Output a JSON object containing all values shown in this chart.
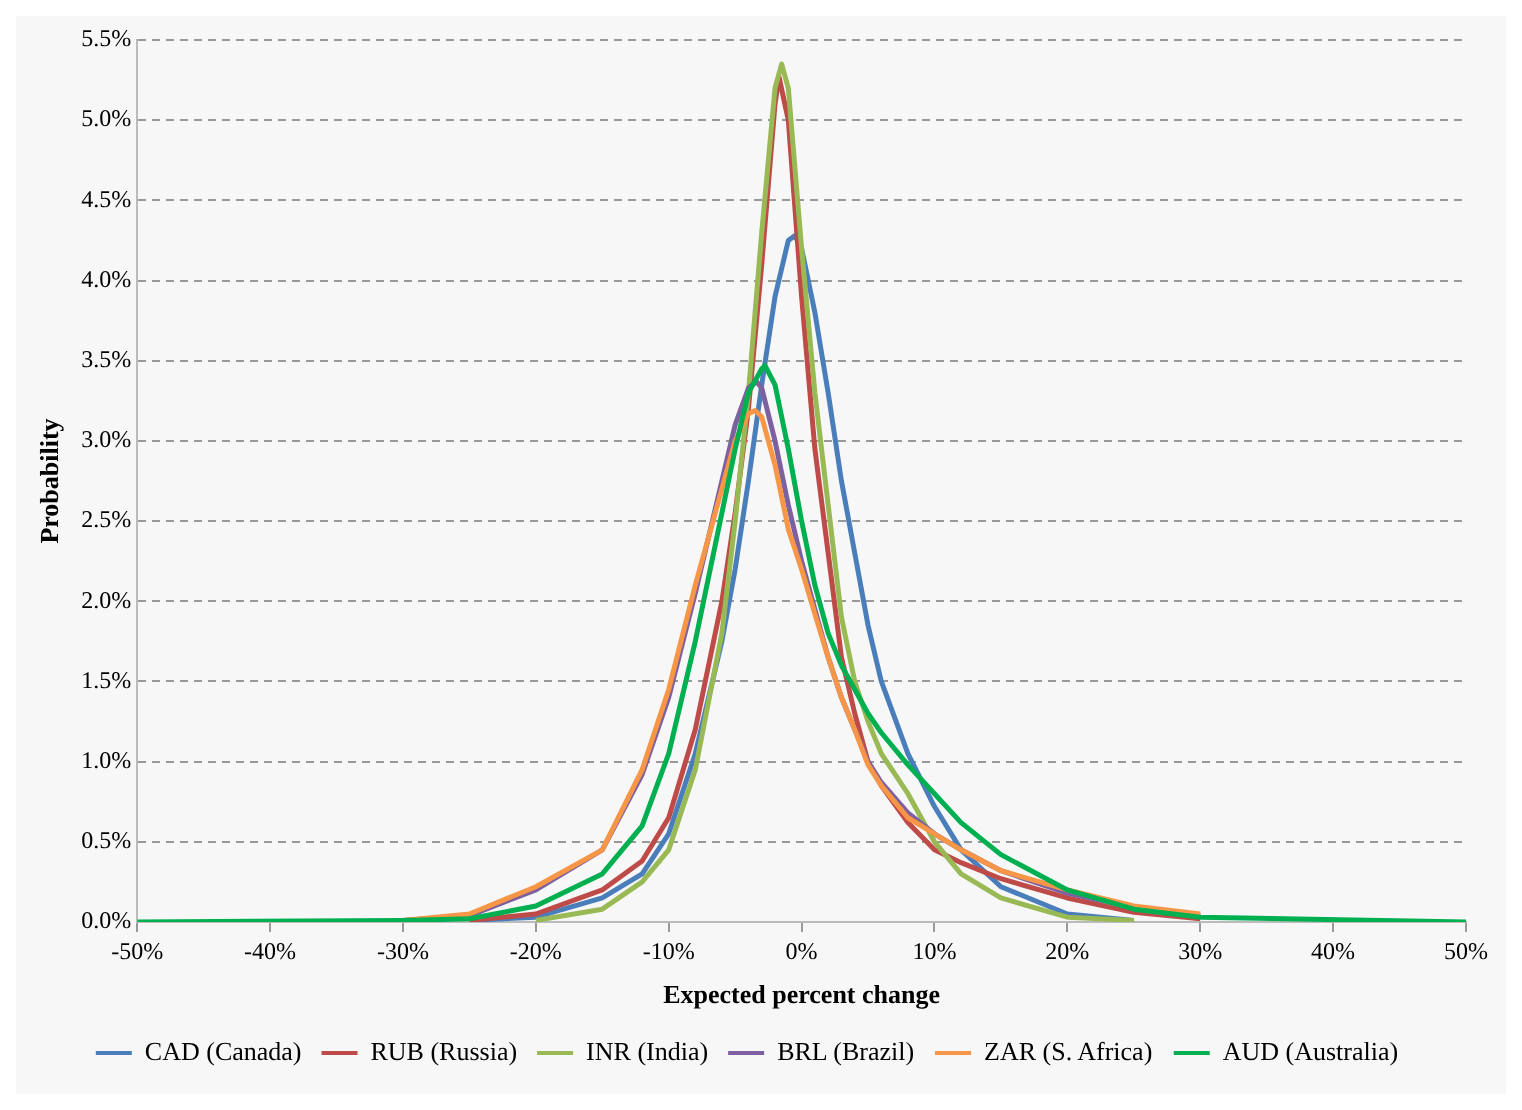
{
  "chart_data": {
    "type": "line",
    "xlabel": "Expected percent change",
    "ylabel": "Probability",
    "xlim": [
      -50,
      50
    ],
    "ylim": [
      0,
      5.5
    ],
    "xticks": [
      {
        "value": -50,
        "label": "-50%"
      },
      {
        "value": -40,
        "label": "-40%"
      },
      {
        "value": -30,
        "label": "-30%"
      },
      {
        "value": -20,
        "label": "-20%"
      },
      {
        "value": -10,
        "label": "-10%"
      },
      {
        "value": 0,
        "label": "0%"
      },
      {
        "value": 10,
        "label": "10%"
      },
      {
        "value": 20,
        "label": "20%"
      },
      {
        "value": 30,
        "label": "30%"
      },
      {
        "value": 40,
        "label": "40%"
      },
      {
        "value": 50,
        "label": "50%"
      }
    ],
    "yticks": [
      {
        "value": 0,
        "label": "0.0%"
      },
      {
        "value": 0.5,
        "label": "0.5%"
      },
      {
        "value": 1,
        "label": "1.0%"
      },
      {
        "value": 1.5,
        "label": "1.5%"
      },
      {
        "value": 2,
        "label": "2.0%"
      },
      {
        "value": 2.5,
        "label": "2.5%"
      },
      {
        "value": 3,
        "label": "3.0%"
      },
      {
        "value": 3.5,
        "label": "3.5%"
      },
      {
        "value": 4,
        "label": "4.0%"
      },
      {
        "value": 4.5,
        "label": "4.5%"
      },
      {
        "value": 5,
        "label": "5.0%"
      },
      {
        "value": 5.5,
        "label": "5.5%"
      }
    ],
    "grid": "y",
    "legend": "bottom",
    "marker": "none",
    "line_style": "solid",
    "series": [
      {
        "name": "CAD (Canada)",
        "color": "#4a7ebb",
        "x": [
          -25,
          -20,
          -15,
          -12,
          -10,
          -8,
          -6,
          -5,
          -4,
          -3,
          -2,
          -1,
          -0.5,
          0,
          1,
          2,
          3,
          4,
          5,
          6,
          8,
          10,
          12,
          15,
          20,
          25
        ],
        "values": [
          0.01,
          0.03,
          0.15,
          0.3,
          0.55,
          1.05,
          1.75,
          2.2,
          2.75,
          3.35,
          3.9,
          4.25,
          4.28,
          4.2,
          3.8,
          3.3,
          2.75,
          2.3,
          1.85,
          1.5,
          1.05,
          0.72,
          0.45,
          0.22,
          0.05,
          0.01
        ]
      },
      {
        "name": "RUB (Russia)",
        "color": "#be4b48",
        "x": [
          -25,
          -20,
          -15,
          -12,
          -10,
          -8,
          -6,
          -5,
          -4,
          -3,
          -2,
          -1.7,
          -1,
          0,
          1,
          2,
          3,
          4,
          5,
          6,
          8,
          10,
          12,
          15,
          20,
          25,
          30
        ],
        "values": [
          0.01,
          0.05,
          0.2,
          0.38,
          0.65,
          1.2,
          2.0,
          2.55,
          3.2,
          4.1,
          5.1,
          5.27,
          5.0,
          3.9,
          2.95,
          2.3,
          1.65,
          1.3,
          1.0,
          0.85,
          0.62,
          0.45,
          0.37,
          0.27,
          0.15,
          0.06,
          0.02
        ]
      },
      {
        "name": "INR (India)",
        "color": "#98b954",
        "x": [
          -20,
          -15,
          -12,
          -10,
          -8,
          -6,
          -5,
          -4,
          -3,
          -2,
          -1.5,
          -1,
          0,
          1,
          2,
          3,
          4,
          5,
          6,
          8,
          10,
          12,
          15,
          20,
          25
        ],
        "values": [
          0.01,
          0.08,
          0.25,
          0.45,
          0.95,
          1.8,
          2.5,
          3.3,
          4.3,
          5.2,
          5.35,
          5.2,
          4.2,
          3.3,
          2.6,
          1.9,
          1.5,
          1.25,
          1.05,
          0.8,
          0.5,
          0.3,
          0.15,
          0.03,
          0.01
        ]
      },
      {
        "name": "BRL (Brazil)",
        "color": "#7d60a0",
        "x": [
          -30,
          -25,
          -20,
          -15,
          -12,
          -10,
          -8,
          -6,
          -5,
          -4,
          -3.4,
          -3,
          -2,
          -1,
          0,
          1,
          2,
          3,
          4,
          5,
          6,
          8,
          10,
          12,
          15,
          20,
          25,
          30
        ],
        "values": [
          0.01,
          0.04,
          0.2,
          0.45,
          0.92,
          1.4,
          2.05,
          2.75,
          3.1,
          3.33,
          3.37,
          3.33,
          3.0,
          2.6,
          2.25,
          1.95,
          1.65,
          1.4,
          1.2,
          1.0,
          0.87,
          0.68,
          0.55,
          0.45,
          0.32,
          0.18,
          0.09,
          0.04
        ]
      },
      {
        "name": "ZAR (S. Africa)",
        "color": "#f79646",
        "x": [
          -30,
          -25,
          -20,
          -15,
          -12,
          -10,
          -8,
          -6,
          -5,
          -4,
          -3.5,
          -3,
          -2,
          -1,
          0,
          1,
          2,
          3,
          4,
          5,
          6,
          8,
          10,
          12,
          15,
          20,
          25,
          30
        ],
        "values": [
          0.01,
          0.05,
          0.22,
          0.45,
          0.95,
          1.45,
          2.1,
          2.7,
          3.0,
          3.17,
          3.19,
          3.15,
          2.85,
          2.45,
          2.2,
          1.92,
          1.65,
          1.4,
          1.2,
          0.98,
          0.85,
          0.65,
          0.55,
          0.45,
          0.32,
          0.2,
          0.1,
          0.05
        ]
      },
      {
        "name": "AUD (Australia)",
        "color": "#00b050",
        "x": [
          -50,
          -30,
          -25,
          -20,
          -15,
          -12,
          -10,
          -8,
          -6,
          -5,
          -4,
          -3,
          -2.75,
          -2,
          -1,
          0,
          1,
          2,
          3,
          4,
          5,
          6,
          8,
          10,
          12,
          15,
          20,
          25,
          30,
          50
        ],
        "values": [
          0,
          0.01,
          0.02,
          0.1,
          0.3,
          0.6,
          1.05,
          1.75,
          2.55,
          2.95,
          3.3,
          3.45,
          3.47,
          3.35,
          2.95,
          2.5,
          2.1,
          1.8,
          1.6,
          1.45,
          1.3,
          1.18,
          0.98,
          0.8,
          0.62,
          0.42,
          0.2,
          0.08,
          0.03,
          0
        ]
      }
    ]
  }
}
